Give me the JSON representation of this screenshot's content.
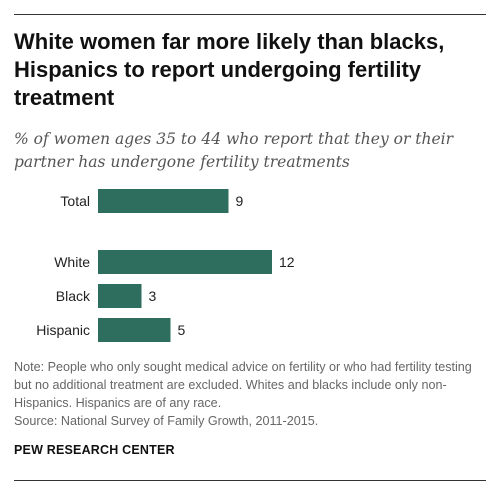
{
  "header": {
    "title": "White women far more likely than blacks, Hispanics to report undergoing fertility treatment",
    "subtitle": "% of women ages 35 to 44 who report that they or their partner has undergone fertility treatments"
  },
  "chart_data": {
    "type": "bar",
    "orientation": "horizontal",
    "categories": [
      "Total",
      "White",
      "Black",
      "Hispanic"
    ],
    "values": [
      9,
      12,
      3,
      5
    ],
    "value_labels": [
      "9",
      "12",
      "3",
      "5"
    ],
    "bar_color": "#2e6e5e",
    "grid": false
  },
  "footer": {
    "note": "Note: People who only sought medical advice on fertility or who had fertility testing but no additional treatment are excluded. Whites and blacks include only non-Hispanics. Hispanics are of any race.",
    "source": "Source: National Survey of Family Growth, 2011-2015.",
    "brand": "PEW RESEARCH CENTER"
  }
}
